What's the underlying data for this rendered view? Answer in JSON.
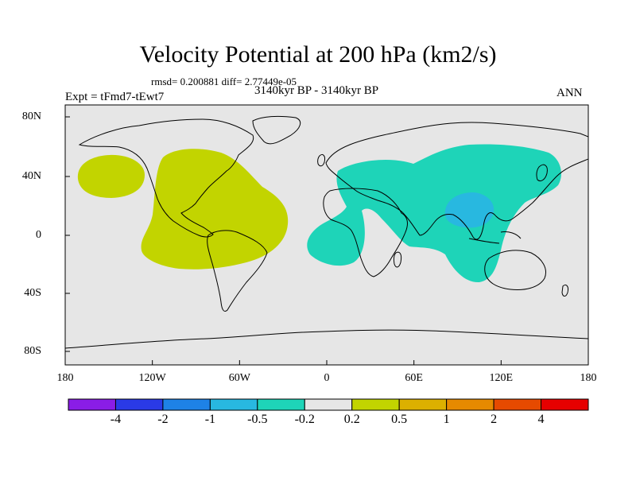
{
  "title": "Velocity Potential at 200 hPa (km2/s)",
  "stats": "rmsd= 0.200881 diff= 2.77449e-05",
  "experiment": "Expt = tFmd7-tEwt7",
  "period": "3140kyr BP - 3140kyr BP",
  "season": "ANN",
  "map": {
    "background_color": "#e6e6e6",
    "coastline_color": "#000000",
    "x_ticks": [
      "180",
      "120W",
      "60W",
      "0",
      "60E",
      "120E",
      "180"
    ],
    "y_ticks": [
      "80N",
      "40N",
      "0",
      "40S",
      "80S"
    ]
  },
  "regions": [
    {
      "name": "positive-anomaly-north-pacific",
      "level": "0.2 to 0.5",
      "color": "#c2d400"
    },
    {
      "name": "positive-anomaly-americas-atlantic",
      "level": "0.2 to 0.5",
      "color": "#c2d400"
    },
    {
      "name": "negative-anomaly-africa-indian-asia",
      "level": "-0.5 to -0.2",
      "color": "#1ed4b8"
    },
    {
      "name": "negative-anomaly-southeast-asia",
      "level": "-1 to -0.5",
      "color": "#28b8e0"
    }
  ],
  "colorbar": {
    "colors": [
      "#8a1de6",
      "#2a3ae6",
      "#1e82e6",
      "#28b8e0",
      "#1ed4b8",
      "#e6e6e6",
      "#c2d400",
      "#dcb000",
      "#e68a00",
      "#e64a00",
      "#e60000"
    ],
    "labels": [
      "-4",
      "-2",
      "-1",
      "-0.5",
      "-0.2",
      "0.2",
      "0.5",
      "1",
      "2",
      "4"
    ]
  }
}
